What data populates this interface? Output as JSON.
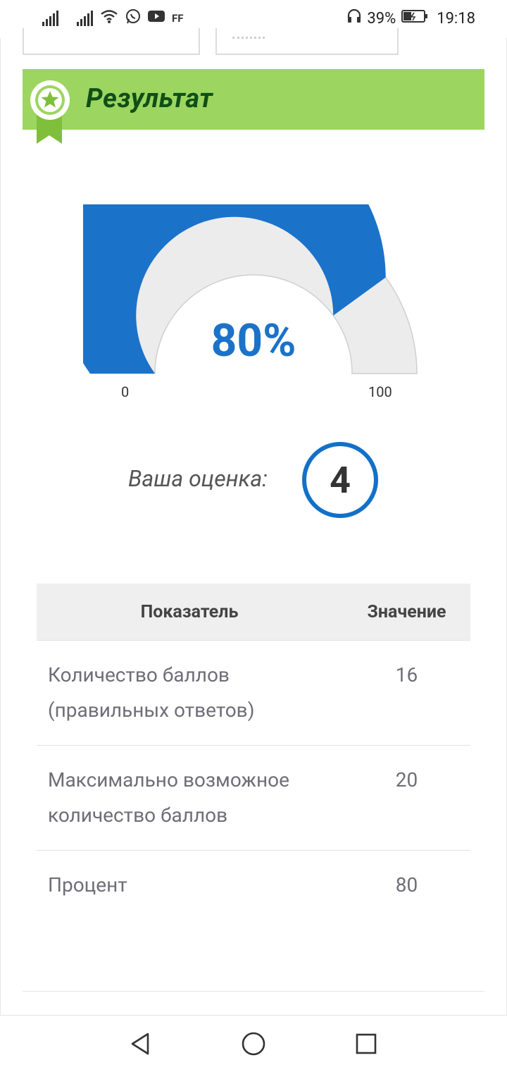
{
  "status_bar": {
    "extra_icon": "FF",
    "battery": "39%",
    "time": "19:18",
    "icons": [
      "signal-icon",
      "signal-icon",
      "wifi-icon",
      "whatsapp-icon",
      "youtube-icon",
      "headset-icon",
      "battery-icon"
    ]
  },
  "result": {
    "title": "Результат",
    "badge_icon": "award-star-icon"
  },
  "gauge": {
    "value_label": "80%",
    "value": 80,
    "min_label": "0",
    "max_label": "100",
    "fill_color": "#1b72c9",
    "track_color": "#ececec"
  },
  "grade": {
    "label": "Ваша оценка:",
    "value": "4"
  },
  "table": {
    "headers": [
      "Показатель",
      "Значение"
    ],
    "rows": [
      {
        "name": "Количество баллов (правильных ответов)",
        "value": "16"
      },
      {
        "name": "Максимально возможное количество баллов",
        "value": "20"
      },
      {
        "name": "Процент",
        "value": "80"
      }
    ]
  },
  "nav": {
    "back_icon": "back-triangle-icon",
    "home_icon": "home-circle-icon",
    "recents_icon": "recents-square-icon"
  }
}
